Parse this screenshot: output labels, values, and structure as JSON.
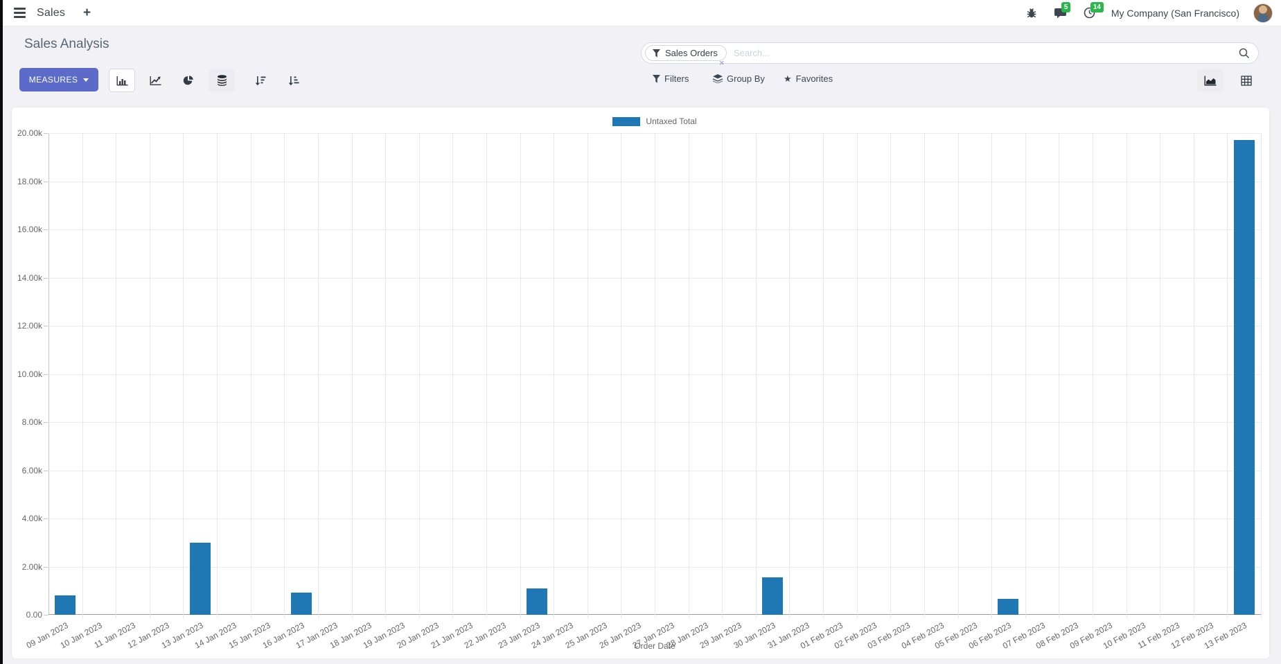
{
  "navbar": {
    "menu_title": "Sales",
    "plus_label": "+",
    "company": "My Company (San Francisco)",
    "messages_badge": "5",
    "activities_badge": "14"
  },
  "control_panel": {
    "breadcrumb": "Sales Analysis",
    "search": {
      "facet_label": "Sales Orders",
      "facet_remove": "×",
      "placeholder": "Search..."
    },
    "measures_label": "MEASURES",
    "filters_label": "Filters",
    "group_by_label": "Group By",
    "favorites_label": "Favorites"
  },
  "colors": {
    "accent": "#5c6bc9",
    "badge_green": "#2bb64d",
    "bar_blue": "#1f77b4"
  },
  "chart_data": {
    "type": "bar",
    "title": "",
    "xlabel": "Order Date",
    "ylabel": "",
    "legend_position": "top",
    "grid": true,
    "ylim": [
      0,
      20000
    ],
    "ytick_values": [
      0,
      2000,
      4000,
      6000,
      8000,
      10000,
      12000,
      14000,
      16000,
      18000,
      20000
    ],
    "ytick_labels": [
      "0.00",
      "2.00k",
      "4.00k",
      "6.00k",
      "8.00k",
      "10.00k",
      "12.00k",
      "14.00k",
      "16.00k",
      "18.00k",
      "20.00k"
    ],
    "categories": [
      "09 Jan 2023",
      "10 Jan 2023",
      "11 Jan 2023",
      "12 Jan 2023",
      "13 Jan 2023",
      "14 Jan 2023",
      "15 Jan 2023",
      "16 Jan 2023",
      "17 Jan 2023",
      "18 Jan 2023",
      "19 Jan 2023",
      "20 Jan 2023",
      "21 Jan 2023",
      "22 Jan 2023",
      "23 Jan 2023",
      "24 Jan 2023",
      "25 Jan 2023",
      "26 Jan 2023",
      "27 Jan 2023",
      "28 Jan 2023",
      "29 Jan 2023",
      "30 Jan 2023",
      "31 Jan 2023",
      "01 Feb 2023",
      "02 Feb 2023",
      "03 Feb 2023",
      "04 Feb 2023",
      "05 Feb 2023",
      "06 Feb 2023",
      "07 Feb 2023",
      "08 Feb 2023",
      "09 Feb 2023",
      "10 Feb 2023",
      "11 Feb 2023",
      "12 Feb 2023",
      "13 Feb 2023"
    ],
    "series": [
      {
        "name": "Untaxed Total",
        "color": "#1f77b4",
        "values": [
          800,
          0,
          0,
          0,
          3000,
          0,
          0,
          920,
          0,
          0,
          0,
          0,
          0,
          0,
          1100,
          0,
          0,
          0,
          0,
          0,
          0,
          1550,
          0,
          0,
          0,
          0,
          0,
          0,
          660,
          0,
          0,
          0,
          0,
          0,
          0,
          19700
        ]
      }
    ]
  }
}
